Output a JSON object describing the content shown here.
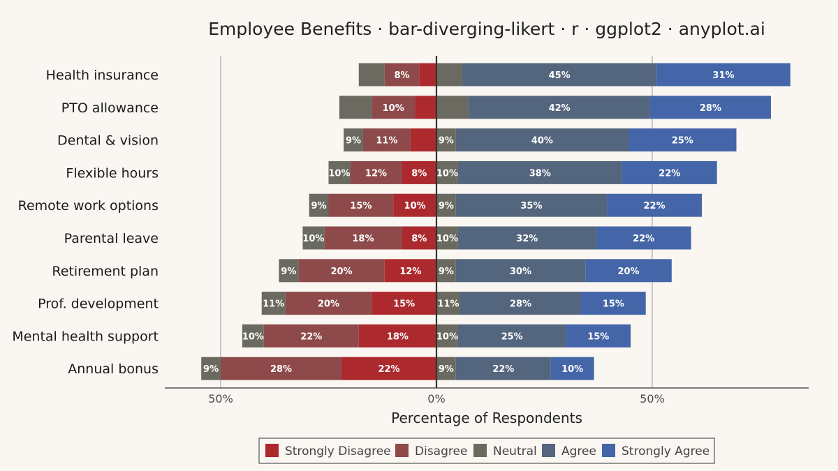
{
  "chart_data": {
    "type": "bar",
    "subtype": "diverging-stacked-horizontal",
    "title": "Employee Benefits · bar-diverging-likert · r · ggplot2 · anyplot.ai",
    "xlabel": "Percentage of Respondents",
    "x_ticks": [
      {
        "value": -50,
        "label": "50%"
      },
      {
        "value": 0,
        "label": "0%"
      },
      {
        "value": 50,
        "label": "50%"
      }
    ],
    "xlim": [
      -63,
      86
    ],
    "grid": "vertical major lines only",
    "legend_position": "bottom",
    "neutral_split": "half left of zero, half right of zero",
    "levels": [
      "Strongly Disagree",
      "Disagree",
      "Neutral",
      "Agree",
      "Strongly Agree"
    ],
    "colors": {
      "Strongly Disagree": "#AC2A2E",
      "Disagree": "#8E4A4A",
      "Neutral": "#6A6A60",
      "Agree": "#54657E",
      "Strongly Agree": "#4466A8"
    },
    "categories": [
      "Health insurance",
      "PTO allowance",
      "Dental & vision",
      "Flexible hours",
      "Remote work options",
      "Parental leave",
      "Retirement plan",
      "Prof. development",
      "Mental health support",
      "Annual bonus"
    ],
    "series": [
      {
        "name": "Strongly Disagree",
        "values": [
          4,
          5,
          6,
          8,
          10,
          8,
          12,
          15,
          18,
          22
        ]
      },
      {
        "name": "Disagree",
        "values": [
          8,
          10,
          11,
          12,
          15,
          18,
          20,
          20,
          22,
          28
        ]
      },
      {
        "name": "Neutral",
        "values": [
          12,
          15,
          9,
          10,
          9,
          10,
          9,
          11,
          10,
          9
        ]
      },
      {
        "name": "Agree",
        "values": [
          45,
          42,
          40,
          38,
          35,
          32,
          30,
          28,
          25,
          22
        ]
      },
      {
        "name": "Strongly Agree",
        "values": [
          31,
          28,
          25,
          22,
          22,
          22,
          20,
          15,
          15,
          10
        ]
      }
    ],
    "labels_shown": {
      "Strongly Disagree": [
        false,
        false,
        false,
        true,
        true,
        true,
        true,
        true,
        true,
        true
      ],
      "Disagree": [
        true,
        true,
        true,
        true,
        true,
        true,
        true,
        true,
        true,
        true
      ],
      "Neutral": [
        false,
        false,
        true,
        true,
        true,
        true,
        true,
        true,
        true,
        true
      ],
      "Agree": [
        true,
        true,
        true,
        true,
        true,
        true,
        true,
        true,
        true,
        true
      ],
      "Strongly Agree": [
        true,
        true,
        true,
        true,
        true,
        true,
        true,
        true,
        true,
        true
      ]
    }
  }
}
